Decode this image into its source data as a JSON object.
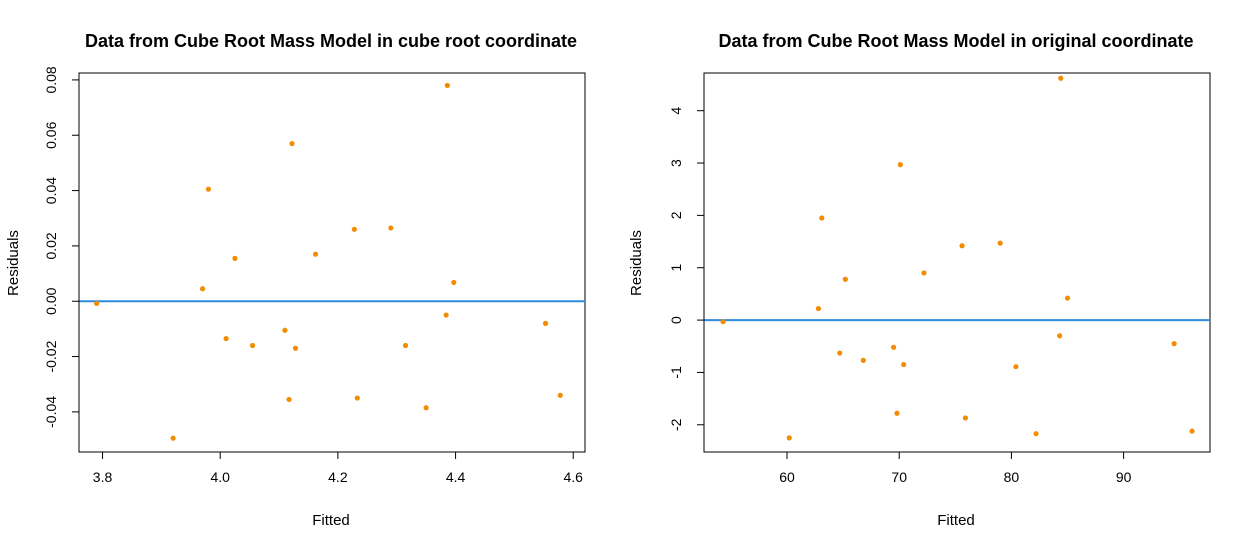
{
  "chart_data": [
    {
      "type": "scatter",
      "title": "Data from Cube Root Mass Model in cube root coordinate",
      "xlabel": "Fitted",
      "ylabel": "Residuals",
      "xlim": [
        3.76,
        4.62
      ],
      "ylim": [
        -0.0545,
        0.0825
      ],
      "xticks": [
        "3.8",
        "4.0",
        "4.2",
        "4.4",
        "4.6"
      ],
      "xtick_values": [
        3.8,
        4.0,
        4.2,
        4.4,
        4.6
      ],
      "yticks": [
        "-0.04",
        "-0.02",
        "0.00",
        "0.02",
        "0.04",
        "0.06",
        "0.08"
      ],
      "ytick_values": [
        -0.04,
        -0.02,
        0.0,
        0.02,
        0.04,
        0.06,
        0.08
      ],
      "reference_line": 0,
      "point_color": "#F28C00",
      "line_color": "#2E8BDB",
      "x": [
        3.79,
        3.92,
        3.97,
        3.98,
        4.01,
        4.025,
        4.055,
        4.11,
        4.117,
        4.122,
        4.128,
        4.162,
        4.228,
        4.233,
        4.29,
        4.315,
        4.35,
        4.384,
        4.386,
        4.397,
        4.553,
        4.578
      ],
      "y": [
        -0.0008,
        -0.0495,
        0.0045,
        0.0405,
        -0.0135,
        0.0155,
        -0.016,
        -0.0105,
        -0.0355,
        0.057,
        -0.017,
        0.017,
        0.026,
        -0.035,
        0.0265,
        -0.016,
        -0.0385,
        -0.005,
        0.078,
        0.0068,
        -0.008,
        -0.034
      ]
    },
    {
      "type": "scatter",
      "title": "Data from Cube Root Mass Model in original coordinate",
      "xlabel": "Fitted",
      "ylabel": "Residuals",
      "xlim": [
        52.6,
        97.7
      ],
      "ylim": [
        -2.52,
        4.72
      ],
      "xticks": [
        "60",
        "70",
        "80",
        "90"
      ],
      "xtick_values": [
        60,
        70,
        80,
        90
      ],
      "yticks": [
        "-2",
        "-1",
        "0",
        "1",
        "2",
        "3",
        "4"
      ],
      "ytick_values": [
        -2,
        -1,
        0,
        1,
        2,
        3,
        4
      ],
      "reference_line": 0,
      "point_color": "#F28C00",
      "line_color": "#2E8BDB",
      "x": [
        54.3,
        60.2,
        62.8,
        63.1,
        64.7,
        65.2,
        66.8,
        69.5,
        69.8,
        70.1,
        70.4,
        72.2,
        75.6,
        75.9,
        79.0,
        80.4,
        82.2,
        84.3,
        84.4,
        85.0,
        94.5,
        96.1
      ],
      "y": [
        -0.03,
        -2.25,
        0.22,
        1.95,
        -0.63,
        0.78,
        -0.77,
        -0.52,
        -1.78,
        2.97,
        -0.85,
        0.9,
        1.42,
        -1.87,
        1.47,
        -0.89,
        -2.17,
        -0.3,
        4.62,
        0.42,
        -0.45,
        -2.12
      ]
    }
  ]
}
